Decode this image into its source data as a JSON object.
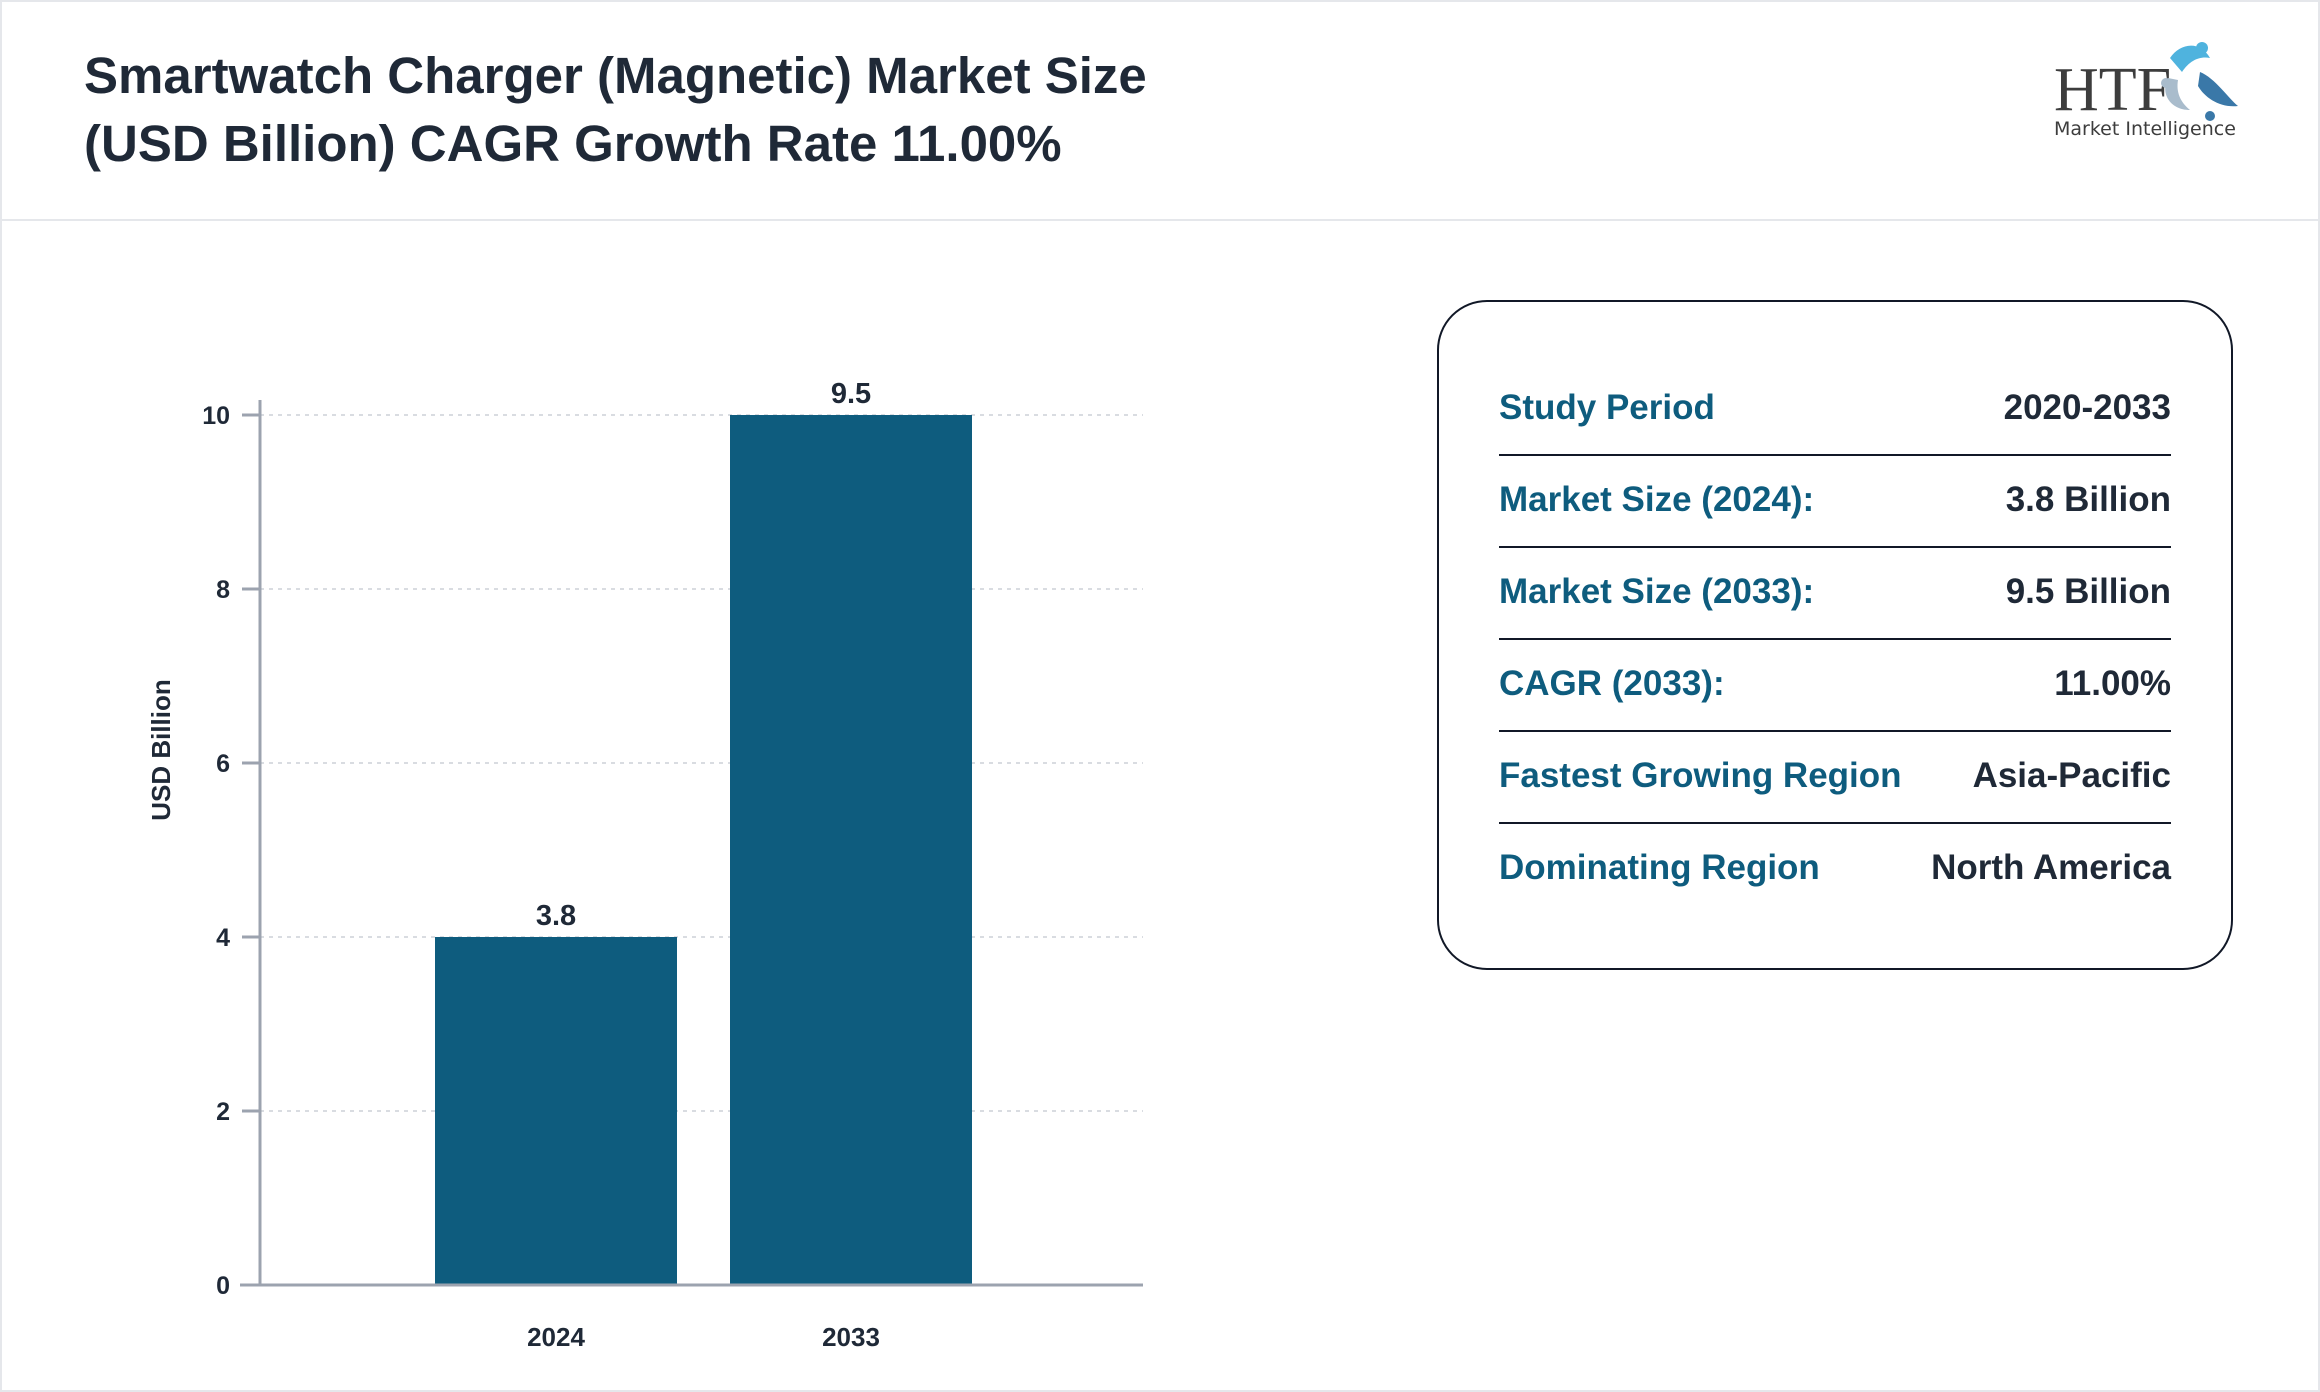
{
  "header": {
    "title_line1": "Smartwatch Charger (Magnetic) Market Size",
    "title_line2": "(USD Billion) CAGR Growth Rate 11.00%",
    "logo_text": "HTF",
    "logo_subtext": "Market Intelligence"
  },
  "chart_data": {
    "type": "bar",
    "categories": [
      "2024",
      "2033"
    ],
    "values": [
      3.8,
      9.5
    ],
    "data_labels": [
      "3.8",
      "9.5"
    ],
    "ylabel": "USD Billion",
    "xlabel": "",
    "ylim": [
      0,
      10
    ],
    "yticks": [
      "0",
      "2",
      "4",
      "6",
      "8",
      "10"
    ],
    "grid": true,
    "bar_color": "#0e5c7e"
  },
  "summary": {
    "rows": [
      {
        "label": "Study Period",
        "value": "2020-2033"
      },
      {
        "label": "Market Size (2024):",
        "value": "3.8 Billion"
      },
      {
        "label": "Market Size (2033):",
        "value": "9.5 Billion"
      },
      {
        "label": "CAGR (2033):",
        "value": "11.00%"
      },
      {
        "label": "Fastest Growing Region",
        "value": "Asia-Pacific"
      },
      {
        "label": "Dominating Region",
        "value": "North America"
      }
    ]
  }
}
